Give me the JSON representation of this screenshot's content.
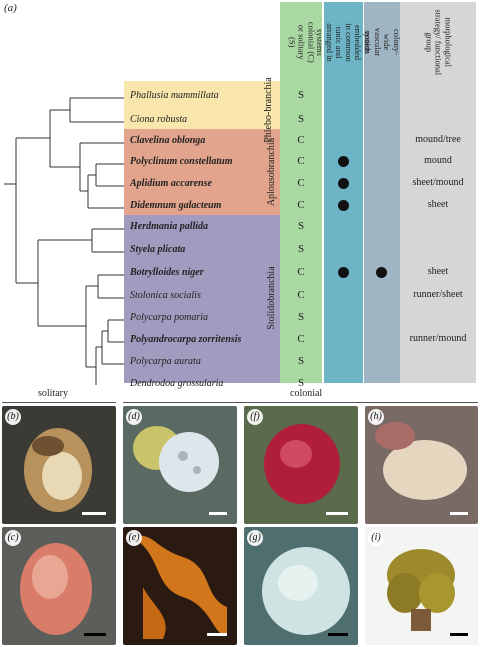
{
  "figure": {
    "panel_a_label": "(a)",
    "trait_headers": [
      "colonial (C) or solitary (S)",
      "zooids embedded in common tunic and arranged in systems",
      "colony-wide vascular system",
      "morphological strategy/ functional group"
    ],
    "groups": [
      {
        "name": "Phlebo-branchia",
        "color": "#f9e6ac"
      },
      {
        "name": "Aplousobranchia",
        "color": "#e2a48c"
      },
      {
        "name": "Stolidobranchia",
        "color": "#a39abf"
      }
    ],
    "species": [
      {
        "name": "Phallusia mammillata",
        "bold": false,
        "type": "S",
        "systems": false,
        "vascular": false,
        "strategy": ""
      },
      {
        "name": "Ciona robusta",
        "bold": false,
        "type": "S",
        "systems": false,
        "vascular": false,
        "strategy": ""
      },
      {
        "name": "Clavelina oblonga",
        "bold": true,
        "type": "C",
        "systems": false,
        "vascular": false,
        "strategy": "mound/tree"
      },
      {
        "name": "Polyclinum constellatum",
        "bold": true,
        "type": "C",
        "systems": true,
        "vascular": false,
        "strategy": "mound"
      },
      {
        "name": "Aplidium accarense",
        "bold": true,
        "type": "C",
        "systems": true,
        "vascular": false,
        "strategy": "sheet/mound"
      },
      {
        "name": "Didemnum galacteum",
        "bold": true,
        "type": "C",
        "systems": true,
        "vascular": false,
        "strategy": "sheet"
      },
      {
        "name": "Herdmania pallida",
        "bold": true,
        "type": "S",
        "systems": false,
        "vascular": false,
        "strategy": ""
      },
      {
        "name": "Styela plicata",
        "bold": true,
        "type": "S",
        "systems": false,
        "vascular": false,
        "strategy": ""
      },
      {
        "name": "Botrylloides niger",
        "bold": true,
        "type": "C",
        "systems": true,
        "vascular": true,
        "strategy": "sheet"
      },
      {
        "name": "Stolonica socialis",
        "bold": false,
        "type": "C",
        "systems": false,
        "vascular": false,
        "strategy": "runner/sheet"
      },
      {
        "name": "Polycarpa pomaria",
        "bold": false,
        "type": "S",
        "systems": false,
        "vascular": false,
        "strategy": ""
      },
      {
        "name": "Polyandrocarpa zorritensis",
        "bold": true,
        "type": "C",
        "systems": false,
        "vascular": false,
        "strategy": "runner/mound"
      },
      {
        "name": "Polycarpa aurata",
        "bold": false,
        "type": "S",
        "systems": false,
        "vascular": false,
        "strategy": ""
      },
      {
        "name": "Dendrodoa grossularia",
        "bold": false,
        "type": "S",
        "systems": false,
        "vascular": false,
        "strategy": ""
      }
    ],
    "photo_sections": {
      "solitary": "solitary",
      "colonial": "colonial"
    },
    "photos": [
      {
        "label": "(b)",
        "bg": "#3b3a35",
        "subject": "#b7925c"
      },
      {
        "label": "(d)",
        "bg": "#5a6a62",
        "subject": "#dde6ea"
      },
      {
        "label": "(f)",
        "bg": "#5b6a4a",
        "subject": "#b01e3c"
      },
      {
        "label": "(h)",
        "bg": "#7a6a65",
        "subject": "#e4d6bf"
      },
      {
        "label": "(c)",
        "bg": "#5d5e59",
        "subject": "#d97c6a"
      },
      {
        "label": "(e)",
        "bg": "#2a1a12",
        "subject": "#d1761b"
      },
      {
        "label": "(g)",
        "bg": "#4f6e70",
        "subject": "#cfe4e2"
      },
      {
        "label": "(i)",
        "bg": "#f4f4f2",
        "subject": "#9c8a2c"
      }
    ]
  }
}
